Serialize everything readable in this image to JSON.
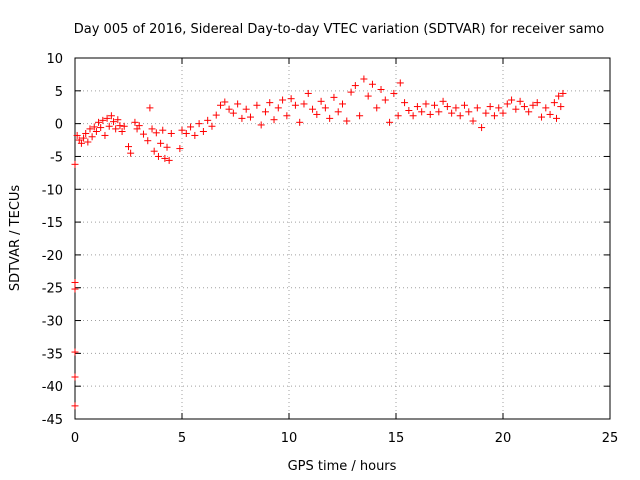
{
  "chart_data": {
    "type": "scatter",
    "title": "Day 005 of 2016, Sidereal Day-to-day VTEC variation (SDTVAR) for receiver samo",
    "xlabel": "GPS time / hours",
    "ylabel": "SDTVAR / TECUs",
    "xlim": [
      0,
      25
    ],
    "ylim": [
      -45,
      10
    ],
    "x_ticks": [
      "0",
      "5",
      "10",
      "15",
      "20",
      "25"
    ],
    "y_ticks": [
      "10",
      "5",
      "0",
      "-5",
      "-10",
      "-15",
      "-20",
      "-25",
      "-30",
      "-35",
      "-40",
      "-45"
    ],
    "grid": true,
    "marker_color": "#ff0000",
    "marker": "plus",
    "series": [
      {
        "name": "SDTVAR",
        "points": [
          [
            0.0,
            -6.2
          ],
          [
            0.0,
            -24.2
          ],
          [
            0.0,
            -25.2
          ],
          [
            0.0,
            -34.8
          ],
          [
            0.0,
            -38.6
          ],
          [
            0.0,
            -43.0
          ],
          [
            0.1,
            -1.8
          ],
          [
            0.2,
            -2.5
          ],
          [
            0.3,
            -3.0
          ],
          [
            0.4,
            -2.2
          ],
          [
            0.5,
            -1.5
          ],
          [
            0.6,
            -2.8
          ],
          [
            0.7,
            -0.8
          ],
          [
            0.8,
            -2.0
          ],
          [
            0.9,
            -0.5
          ],
          [
            1.0,
            -1.2
          ],
          [
            1.1,
            0.2
          ],
          [
            1.2,
            -0.6
          ],
          [
            1.3,
            0.5
          ],
          [
            1.4,
            -1.8
          ],
          [
            1.5,
            0.8
          ],
          [
            1.6,
            -0.4
          ],
          [
            1.7,
            1.2
          ],
          [
            1.8,
            0.3
          ],
          [
            1.9,
            -0.8
          ],
          [
            2.0,
            0.6
          ],
          [
            2.1,
            -0.3
          ],
          [
            2.2,
            -1.2
          ],
          [
            2.3,
            -0.4
          ],
          [
            2.5,
            -3.5
          ],
          [
            2.6,
            -4.5
          ],
          [
            2.8,
            0.2
          ],
          [
            2.9,
            -0.8
          ],
          [
            3.0,
            -0.3
          ],
          [
            3.2,
            -1.6
          ],
          [
            3.4,
            -2.6
          ],
          [
            3.5,
            2.4
          ],
          [
            3.6,
            -0.8
          ],
          [
            3.7,
            -4.2
          ],
          [
            3.8,
            -1.4
          ],
          [
            3.9,
            -5.0
          ],
          [
            4.0,
            -3.0
          ],
          [
            4.1,
            -1.0
          ],
          [
            4.2,
            -5.3
          ],
          [
            4.3,
            -3.6
          ],
          [
            4.4,
            -5.6
          ],
          [
            4.5,
            -1.5
          ],
          [
            4.9,
            -3.8
          ],
          [
            5.0,
            -1.0
          ],
          [
            5.2,
            -1.5
          ],
          [
            5.4,
            -0.5
          ],
          [
            5.6,
            -1.8
          ],
          [
            5.8,
            0.0
          ],
          [
            6.0,
            -1.2
          ],
          [
            6.2,
            0.5
          ],
          [
            6.4,
            -0.4
          ],
          [
            6.6,
            1.3
          ],
          [
            6.8,
            2.8
          ],
          [
            7.0,
            3.3
          ],
          [
            7.2,
            2.2
          ],
          [
            7.4,
            1.6
          ],
          [
            7.6,
            3.0
          ],
          [
            7.8,
            0.8
          ],
          [
            8.0,
            2.2
          ],
          [
            8.2,
            1.0
          ],
          [
            8.5,
            2.8
          ],
          [
            8.7,
            -0.2
          ],
          [
            8.9,
            1.8
          ],
          [
            9.1,
            3.2
          ],
          [
            9.3,
            0.6
          ],
          [
            9.5,
            2.4
          ],
          [
            9.7,
            3.6
          ],
          [
            9.9,
            1.2
          ],
          [
            10.1,
            3.8
          ],
          [
            10.3,
            2.8
          ],
          [
            10.5,
            0.2
          ],
          [
            10.7,
            3.0
          ],
          [
            10.9,
            4.6
          ],
          [
            11.1,
            2.2
          ],
          [
            11.3,
            1.4
          ],
          [
            11.5,
            3.4
          ],
          [
            11.7,
            2.4
          ],
          [
            11.9,
            0.8
          ],
          [
            12.1,
            4.0
          ],
          [
            12.3,
            1.8
          ],
          [
            12.5,
            3.0
          ],
          [
            12.7,
            0.4
          ],
          [
            12.9,
            4.8
          ],
          [
            13.1,
            5.8
          ],
          [
            13.3,
            1.2
          ],
          [
            13.5,
            6.8
          ],
          [
            13.7,
            4.2
          ],
          [
            13.9,
            6.0
          ],
          [
            14.1,
            2.4
          ],
          [
            14.3,
            5.2
          ],
          [
            14.5,
            3.6
          ],
          [
            14.7,
            0.2
          ],
          [
            14.9,
            4.6
          ],
          [
            15.1,
            1.2
          ],
          [
            15.2,
            6.2
          ],
          [
            15.4,
            3.2
          ],
          [
            15.6,
            2.0
          ],
          [
            15.8,
            1.2
          ],
          [
            16.0,
            2.6
          ],
          [
            16.2,
            1.8
          ],
          [
            16.4,
            3.0
          ],
          [
            16.6,
            1.4
          ],
          [
            16.8,
            2.8
          ],
          [
            17.0,
            1.8
          ],
          [
            17.2,
            3.4
          ],
          [
            17.4,
            2.6
          ],
          [
            17.6,
            1.6
          ],
          [
            17.8,
            2.4
          ],
          [
            18.0,
            1.2
          ],
          [
            18.2,
            2.8
          ],
          [
            18.4,
            1.8
          ],
          [
            18.6,
            0.4
          ],
          [
            18.8,
            2.4
          ],
          [
            19.0,
            -0.6
          ],
          [
            19.2,
            1.6
          ],
          [
            19.4,
            2.6
          ],
          [
            19.6,
            1.2
          ],
          [
            19.8,
            2.4
          ],
          [
            20.0,
            1.6
          ],
          [
            20.2,
            3.0
          ],
          [
            20.4,
            3.6
          ],
          [
            20.6,
            2.2
          ],
          [
            20.8,
            3.4
          ],
          [
            21.0,
            2.6
          ],
          [
            21.2,
            1.8
          ],
          [
            21.4,
            2.8
          ],
          [
            21.6,
            3.2
          ],
          [
            21.8,
            1.0
          ],
          [
            22.0,
            2.4
          ],
          [
            22.2,
            1.4
          ],
          [
            22.4,
            3.2
          ],
          [
            22.5,
            0.8
          ],
          [
            22.6,
            4.2
          ],
          [
            22.7,
            2.6
          ],
          [
            22.8,
            4.6
          ]
        ]
      }
    ]
  }
}
